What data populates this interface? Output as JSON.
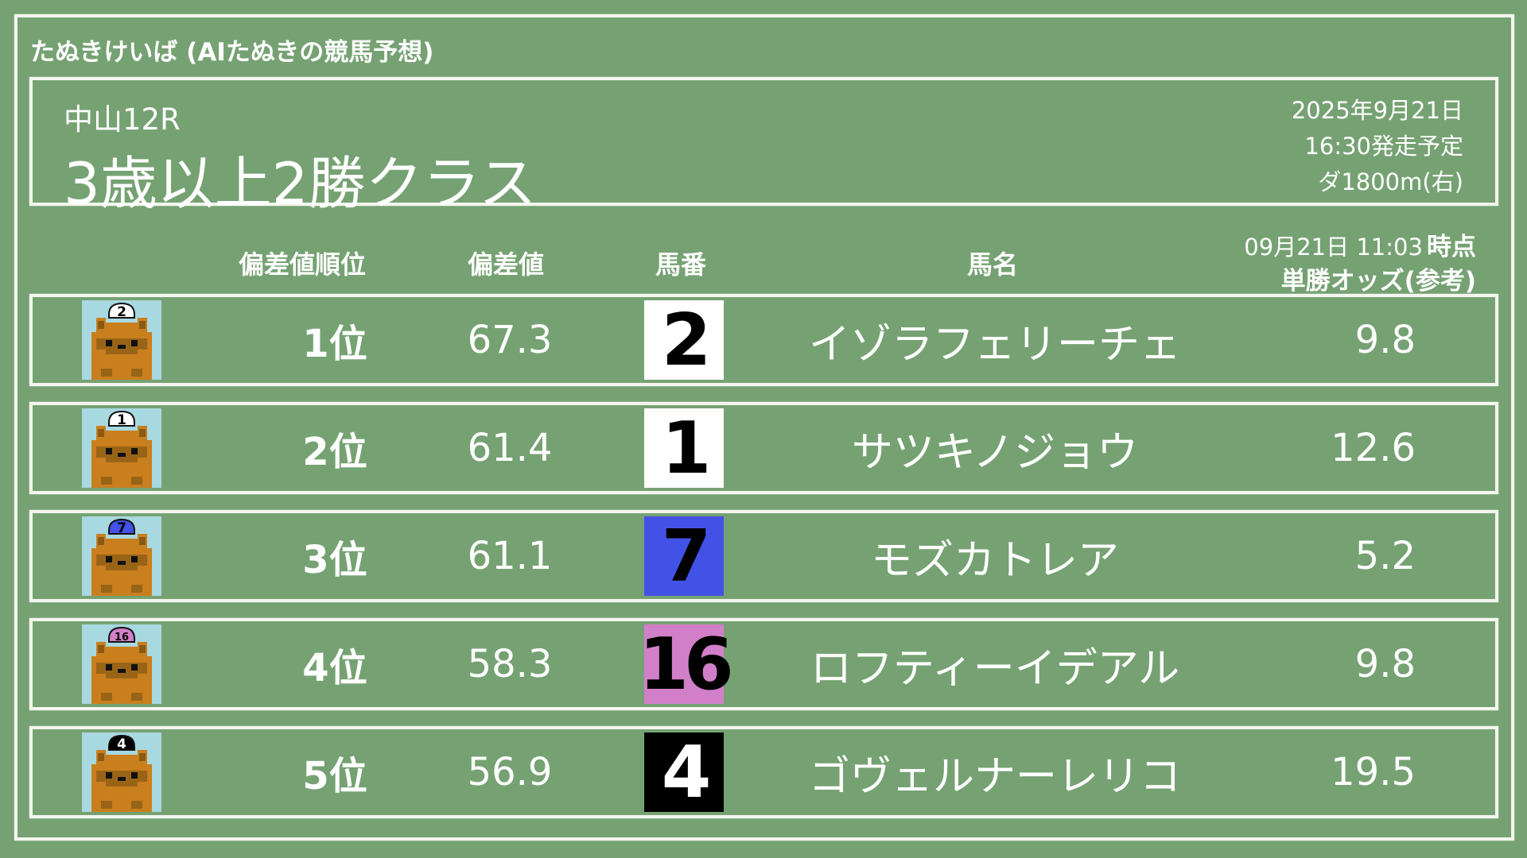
{
  "app_title": "たぬきけいば (AIたぬきの競馬予想)",
  "race": {
    "venue": "中山12R",
    "name": "3歳以上2勝クラス",
    "date": "2025年9月21日",
    "post_time": "16:30発走予定",
    "course": "ダ1800m(右)"
  },
  "columns": {
    "rank": "偏差値順位",
    "score": "偏差値",
    "number": "馬番",
    "name": "馬名",
    "odds_time": "09月21日 11:03",
    "odds_time_suffix": "時点",
    "odds": "単勝オッズ(参考)"
  },
  "rows": [
    {
      "rank": "1位",
      "score": "67.3",
      "number": "2",
      "name": "イゾラフェリーチェ",
      "odds": "9.8",
      "cap_color": "#ffffff",
      "num_color": "#000000"
    },
    {
      "rank": "2位",
      "score": "61.4",
      "number": "1",
      "name": "サツキノジョウ",
      "odds": "12.6",
      "cap_color": "#ffffff",
      "num_color": "#000000"
    },
    {
      "rank": "3位",
      "score": "61.1",
      "number": "7",
      "name": "モズカトレア",
      "odds": "5.2",
      "cap_color": "#4252e6",
      "num_color": "#000000"
    },
    {
      "rank": "4位",
      "score": "58.3",
      "number": "16",
      "name": "ロフティーイデアル",
      "odds": "9.8",
      "cap_color": "#d27fc9",
      "num_color": "#000000"
    },
    {
      "rank": "5位",
      "score": "56.9",
      "number": "4",
      "name": "ゴヴェルナーレリコ",
      "odds": "19.5",
      "cap_color": "#000000",
      "num_color": "#ffffff"
    }
  ]
}
